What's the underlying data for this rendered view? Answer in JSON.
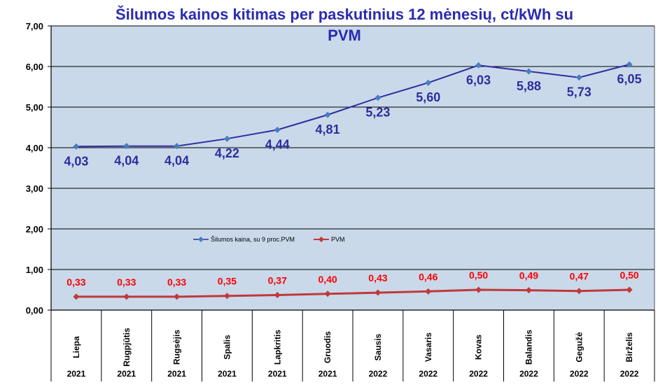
{
  "chart_data": {
    "type": "line",
    "title_line1": "Šilumos kainos kitimas per paskutinius 12 mėnesių, ct/kWh su",
    "title_line2": "PVM",
    "categories": [
      "Liepa",
      "Rugpjūtis",
      "Rugsėjis",
      "Spalis",
      "Lapkritis",
      "Gruodis",
      "Sausis",
      "Vasaris",
      "Kovas",
      "Balandis",
      "Gegužė",
      "Birželis"
    ],
    "years": [
      "2021",
      "2021",
      "2021",
      "2021",
      "2021",
      "2021",
      "2022",
      "2022",
      "2022",
      "2022",
      "2022",
      "2022"
    ],
    "ylim": [
      0,
      7
    ],
    "yticks": [
      "0,00",
      "1,00",
      "2,00",
      "3,00",
      "4,00",
      "5,00",
      "6,00",
      "7,00"
    ],
    "grid": true,
    "legend_position": "center-left",
    "series": [
      {
        "name": "Šilumos kaina, su 9 proc.PVM",
        "color": "#2e2e9e",
        "values": [
          4.03,
          4.04,
          4.04,
          4.22,
          4.44,
          4.81,
          5.23,
          5.6,
          6.03,
          5.88,
          5.73,
          6.05
        ],
        "labels": [
          "4,03",
          "4,04",
          "4,04",
          "4,22",
          "4,44",
          "4,81",
          "5,23",
          "5,60",
          "6,03",
          "5,88",
          "5,73",
          "6,05"
        ]
      },
      {
        "name": "PVM",
        "color": "#c0393b",
        "values": [
          0.33,
          0.33,
          0.33,
          0.35,
          0.37,
          0.4,
          0.43,
          0.46,
          0.5,
          0.49,
          0.47,
          0.5
        ],
        "labels": [
          "0,33",
          "0,33",
          "0,33",
          "0,35",
          "0,37",
          "0,40",
          "0,43",
          "0,46",
          "0,50",
          "0,49",
          "0,47",
          "0,50"
        ]
      }
    ],
    "colors": {
      "plot_bg": "#c9d9ea",
      "title": "#2b2bb0",
      "label_pvm": "#ff0000"
    }
  }
}
